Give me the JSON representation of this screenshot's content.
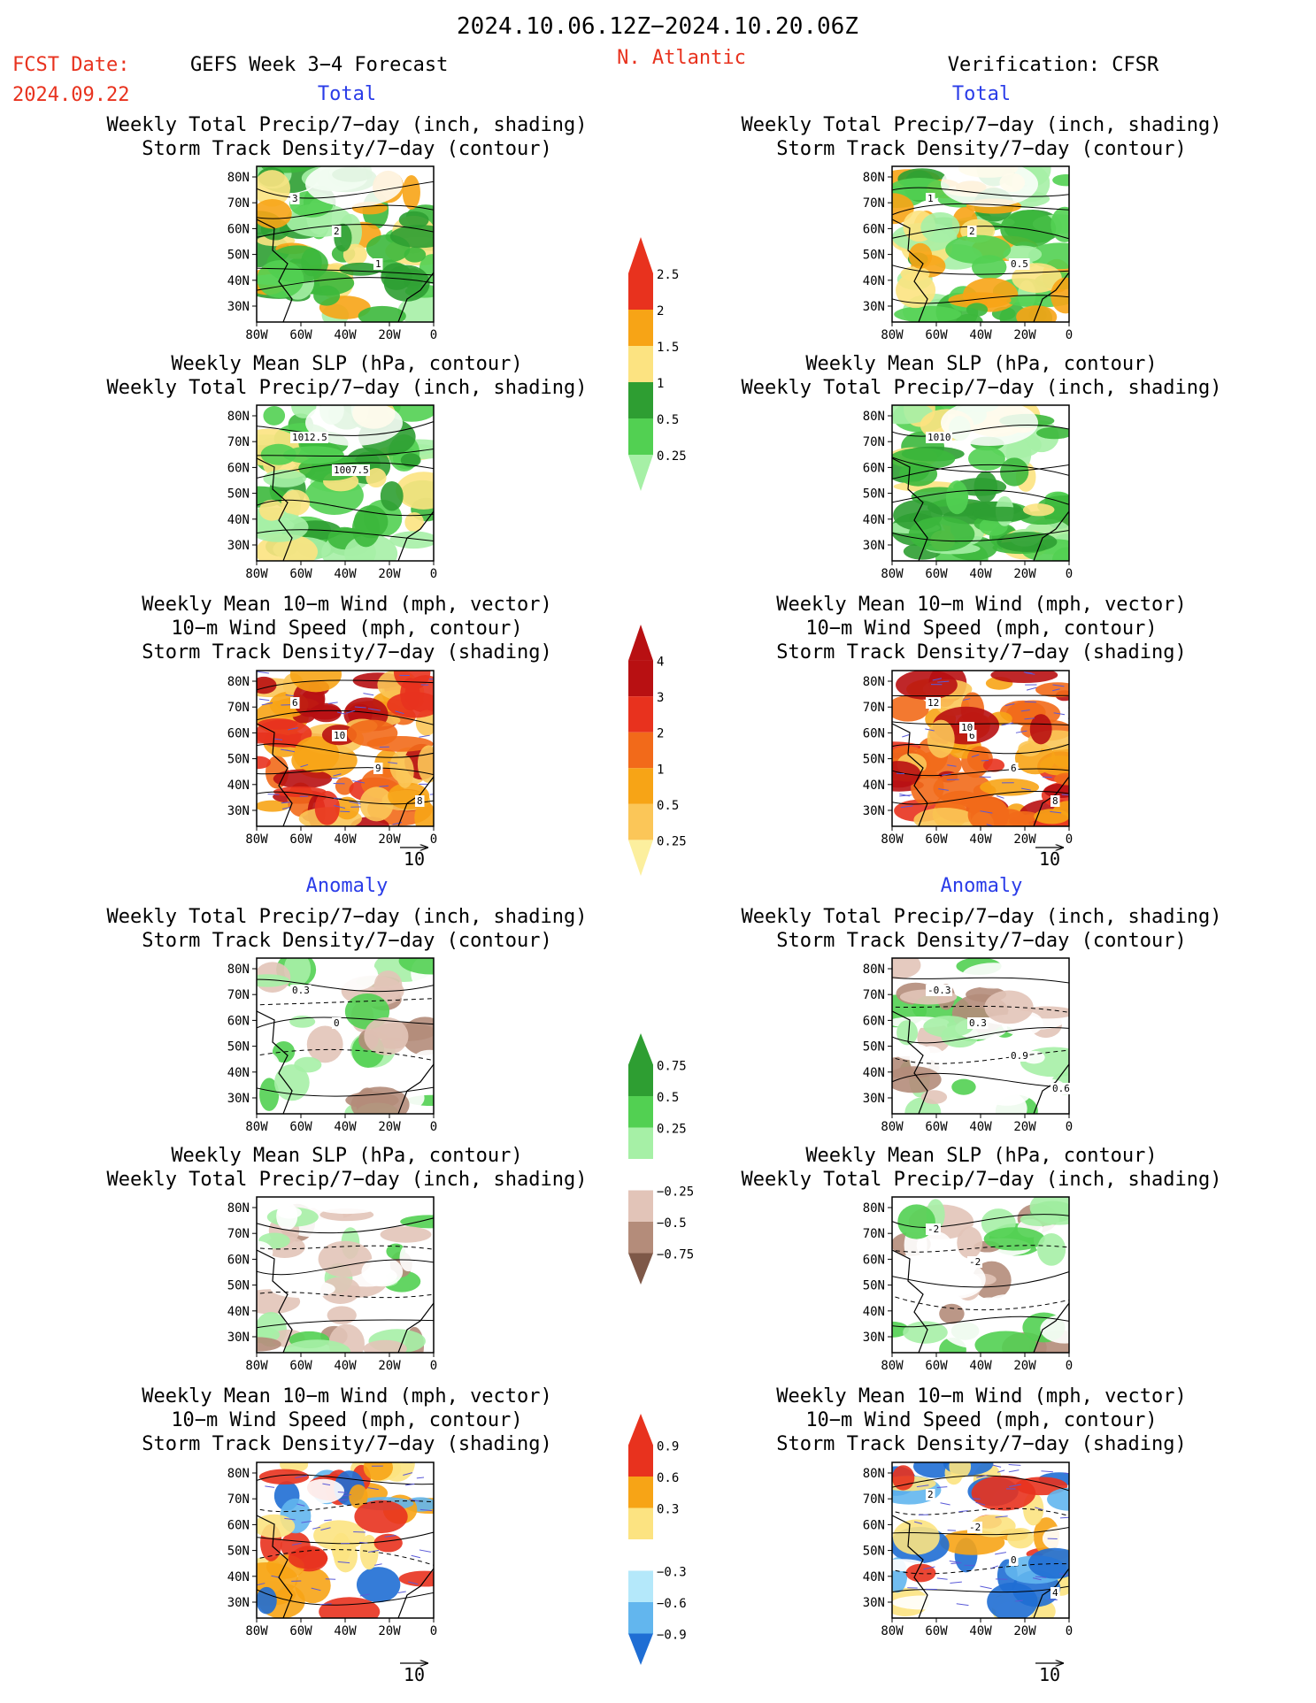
{
  "header": {
    "date_range": "2024.10.06.12Z−2024.10.20.06Z",
    "fcst_label": "FCST Date:",
    "fcst_date": "2024.09.22",
    "model": "GEFS Week 3−4 Forecast",
    "region": "N. Atlantic",
    "verification": "Verification: CFSR"
  },
  "sections": {
    "total": "Total",
    "anomaly": "Anomaly"
  },
  "map_axes": {
    "lat_labels": [
      "80N",
      "70N",
      "60N",
      "50N",
      "40N",
      "30N"
    ],
    "lon_labels": [
      "80W",
      "60W",
      "40W",
      "20W",
      "0"
    ]
  },
  "vector_ref": "10",
  "panel_titles": {
    "precip_storm": [
      "Weekly Total Precip/7−day (inch, shading)",
      "Storm Track Density/7−day (contour)"
    ],
    "slp_precip": [
      "Weekly Mean SLP (hPa, contour)",
      "Weekly Total Precip/7−day (inch, shading)"
    ],
    "wind_storm": [
      "Weekly Mean 10−m Wind (mph, vector)",
      "10−m Wind Speed (mph, contour)",
      "Storm Track Density/7−day (shading)"
    ]
  },
  "panels": [
    {
      "id": "fc-total-precip",
      "col": "forecast",
      "kind": "precip_storm",
      "labels": [
        "3",
        "2",
        "1"
      ]
    },
    {
      "id": "vf-total-precip",
      "col": "verification",
      "kind": "precip_storm",
      "labels": [
        "1",
        "2",
        "0.5"
      ]
    },
    {
      "id": "fc-total-slp",
      "col": "forecast",
      "kind": "slp_precip",
      "labels": [
        "1012.5",
        "1007.5"
      ]
    },
    {
      "id": "vf-total-slp",
      "col": "verification",
      "kind": "slp_precip",
      "labels": [
        "1010"
      ]
    },
    {
      "id": "fc-total-wind",
      "col": "forecast",
      "kind": "wind_storm",
      "labels": [
        "6",
        "10",
        "9",
        "8"
      ]
    },
    {
      "id": "vf-total-wind",
      "col": "verification",
      "kind": "wind_storm",
      "labels": [
        "12",
        "6",
        "6",
        "8",
        "10"
      ]
    },
    {
      "id": "fc-anom-precip",
      "col": "forecast",
      "kind": "precip_storm",
      "labels": [
        "0.3",
        "0"
      ]
    },
    {
      "id": "vf-anom-precip",
      "col": "verification",
      "kind": "precip_storm",
      "labels": [
        "-0.3",
        "0.3",
        "0.9",
        "0.6"
      ]
    },
    {
      "id": "fc-anom-slp",
      "col": "forecast",
      "kind": "slp_precip",
      "labels": []
    },
    {
      "id": "vf-anom-slp",
      "col": "verification",
      "kind": "slp_precip",
      "labels": [
        "-2",
        "-2"
      ]
    },
    {
      "id": "fc-anom-wind",
      "col": "forecast",
      "kind": "wind_storm",
      "labels": []
    },
    {
      "id": "vf-anom-wind",
      "col": "verification",
      "kind": "wind_storm",
      "labels": [
        "2",
        "-2",
        "0",
        "4"
      ]
    }
  ],
  "colorbars": [
    {
      "id": "cb-precip-total",
      "labels": [
        "2.5",
        "2",
        "1.5",
        "1",
        "0.5",
        "0.25"
      ],
      "colors": [
        "#e8321e",
        "#f7a416",
        "#fce381",
        "#2e9e32",
        "#52d052",
        "#a6f0a6"
      ]
    },
    {
      "id": "cb-storm-total",
      "labels": [
        "4",
        "3",
        "2",
        "1",
        "0.5",
        "0.25"
      ],
      "colors": [
        "#b81012",
        "#e8321e",
        "#f26a1a",
        "#f7a416",
        "#fbc658",
        "#fcef9e"
      ]
    },
    {
      "id": "cb-precip-anom",
      "labels": [
        "0.75",
        "0.5",
        "0.25",
        "−0.25",
        "−0.5",
        "−0.75"
      ],
      "colors": [
        "#2e9e32",
        "#52d052",
        "#a6f0a6",
        "#ffffff",
        "#e2c4b8",
        "#b48c7a",
        "#7e5848"
      ]
    },
    {
      "id": "cb-storm-anom",
      "labels": [
        "0.9",
        "0.6",
        "0.3",
        "−0.3",
        "−0.6",
        "−0.9"
      ],
      "colors": [
        "#e8321e",
        "#f7a416",
        "#fce381",
        "#ffffff",
        "#b4e8fa",
        "#62b6ee",
        "#1f6ed4"
      ]
    }
  ]
}
